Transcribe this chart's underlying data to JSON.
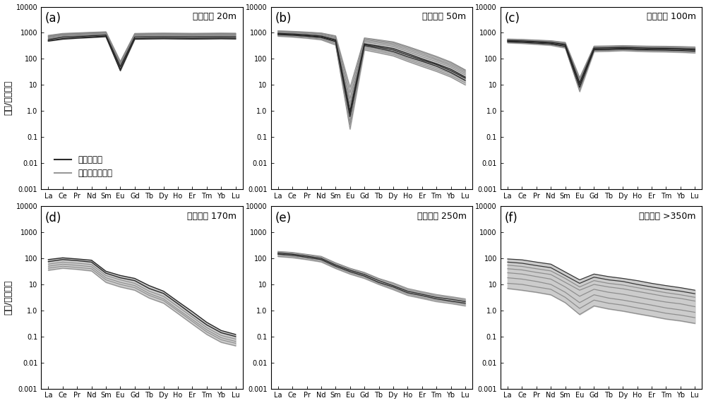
{
  "elements": [
    "La",
    "Ce",
    "Pr",
    "Nd",
    "Sm",
    "Eu",
    "Gd",
    "Tb",
    "Dy",
    "Ho",
    "Er",
    "Tm",
    "Yb",
    "Lu"
  ],
  "titles": [
    "距离岩体 20m",
    "距离岩体 50m",
    "距离岩体 100m",
    "距离岩体 170m",
    "距离岩体 250m",
    "距离岩体 >350m"
  ],
  "panel_labels": [
    "(a)",
    "(b)",
    "(c)",
    "(d)",
    "(e)",
    "(f)"
  ],
  "ylabel": "样品/球粒陨石",
  "ylim": [
    0.001,
    10000
  ],
  "yticks": [
    0.001,
    0.01,
    0.1,
    1.0,
    10,
    100,
    1000,
    10000
  ],
  "yticklabels": [
    "0.001",
    "0.01",
    "0.1",
    "1.0",
    "10",
    "100",
    "1000",
    "10000"
  ],
  "legend_entries": [
    "脉中白鹨矿",
    "接触带中白鹨矿"
  ],
  "legend_colors_dark": "#2a2a2a",
  "legend_colors_light": "#999999",
  "background_color": "#ffffff",
  "fill_color_dark": "#aaaaaa",
  "fill_color_light": "#cccccc",
  "panel_a": {
    "dark_lines": [
      [
        500,
        600,
        650,
        700,
        750,
        40,
        600,
        620,
        630,
        620,
        610,
        620,
        630,
        620
      ],
      [
        550,
        680,
        720,
        770,
        820,
        50,
        680,
        700,
        710,
        700,
        690,
        700,
        710,
        700
      ],
      [
        480,
        570,
        620,
        660,
        710,
        35,
        570,
        580,
        590,
        580,
        575,
        580,
        590,
        580
      ]
    ],
    "light_lines": [
      [
        700,
        850,
        900,
        950,
        1000,
        60,
        850,
        870,
        880,
        870,
        860,
        870,
        880,
        870
      ],
      [
        750,
        900,
        950,
        1000,
        1050,
        70,
        900,
        920,
        930,
        920,
        910,
        920,
        930,
        920
      ],
      [
        800,
        950,
        1000,
        1050,
        1100,
        80,
        950,
        970,
        980,
        970,
        960,
        970,
        980,
        970
      ],
      [
        680,
        820,
        870,
        920,
        970,
        55,
        820,
        840,
        850,
        840,
        830,
        840,
        850,
        840
      ],
      [
        720,
        870,
        920,
        970,
        1020,
        65,
        870,
        890,
        900,
        890,
        880,
        890,
        900,
        890
      ],
      [
        760,
        910,
        960,
        1010,
        1060,
        75,
        910,
        930,
        940,
        930,
        920,
        930,
        940,
        930
      ],
      [
        600,
        730,
        780,
        830,
        880,
        48,
        730,
        750,
        760,
        750,
        740,
        750,
        760,
        750
      ],
      [
        640,
        770,
        820,
        870,
        920,
        52,
        770,
        790,
        800,
        790,
        780,
        790,
        800,
        790
      ]
    ]
  },
  "panel_b": {
    "dark_lines": [
      [
        900,
        850,
        780,
        700,
        500,
        0.8,
        350,
        280,
        220,
        140,
        90,
        60,
        35,
        18
      ],
      [
        950,
        900,
        830,
        750,
        540,
        1.0,
        380,
        310,
        250,
        160,
        100,
        65,
        40,
        20
      ],
      [
        860,
        810,
        740,
        660,
        460,
        0.6,
        320,
        250,
        190,
        120,
        80,
        52,
        30,
        15
      ]
    ],
    "light_lines": [
      [
        1050,
        1000,
        930,
        850,
        630,
        2.0,
        500,
        420,
        340,
        220,
        140,
        90,
        55,
        28
      ],
      [
        1100,
        1050,
        980,
        900,
        680,
        3.0,
        550,
        460,
        380,
        250,
        160,
        100,
        62,
        32
      ],
      [
        1000,
        950,
        880,
        800,
        580,
        1.5,
        450,
        370,
        300,
        190,
        120,
        78,
        48,
        24
      ],
      [
        1150,
        1100,
        1030,
        950,
        730,
        5.0,
        600,
        500,
        420,
        280,
        180,
        115,
        70,
        36
      ],
      [
        820,
        770,
        700,
        620,
        420,
        0.4,
        280,
        220,
        170,
        105,
        68,
        44,
        27,
        14
      ],
      [
        780,
        730,
        660,
        580,
        380,
        0.3,
        250,
        195,
        150,
        92,
        59,
        38,
        23,
        12
      ],
      [
        1200,
        1140,
        1070,
        990,
        770,
        8.0,
        640,
        540,
        450,
        300,
        195,
        125,
        76,
        38
      ],
      [
        740,
        690,
        620,
        540,
        340,
        0.2,
        220,
        170,
        130,
        80,
        51,
        33,
        20,
        10
      ]
    ]
  },
  "panel_c": {
    "dark_lines": [
      [
        480,
        460,
        430,
        400,
        330,
        10,
        240,
        245,
        255,
        245,
        238,
        235,
        228,
        218
      ],
      [
        510,
        490,
        460,
        430,
        360,
        12,
        260,
        265,
        275,
        265,
        258,
        255,
        248,
        238
      ],
      [
        450,
        430,
        400,
        370,
        300,
        8,
        220,
        225,
        235,
        225,
        218,
        215,
        208,
        198
      ]
    ],
    "light_lines": [
      [
        540,
        520,
        490,
        460,
        390,
        15,
        280,
        285,
        295,
        285,
        278,
        275,
        268,
        258
      ],
      [
        560,
        540,
        510,
        480,
        410,
        17,
        295,
        300,
        310,
        300,
        293,
        290,
        283,
        273
      ],
      [
        520,
        500,
        470,
        440,
        370,
        13,
        265,
        270,
        280,
        270,
        263,
        260,
        253,
        243
      ],
      [
        580,
        560,
        530,
        500,
        430,
        19,
        310,
        315,
        325,
        315,
        308,
        305,
        298,
        288
      ],
      [
        430,
        410,
        380,
        350,
        280,
        6.5,
        205,
        210,
        220,
        210,
        203,
        200,
        193,
        183
      ],
      [
        410,
        390,
        360,
        330,
        260,
        5.5,
        190,
        195,
        205,
        195,
        188,
        185,
        178,
        168
      ]
    ]
  },
  "panel_d": {
    "dark_lines": [
      [
        90,
        105,
        95,
        85,
        32,
        22,
        17,
        9,
        5.5,
        2.2,
        0.9,
        0.35,
        0.17,
        0.12
      ],
      [
        75,
        90,
        82,
        72,
        27,
        18,
        14,
        7,
        4.5,
        1.8,
        0.7,
        0.28,
        0.14,
        0.1
      ]
    ],
    "light_lines": [
      [
        60,
        72,
        65,
        58,
        22,
        15,
        11,
        5.5,
        3.5,
        1.4,
        0.56,
        0.22,
        0.11,
        0.08
      ],
      [
        50,
        60,
        54,
        48,
        18,
        12,
        9,
        4.5,
        2.8,
        1.1,
        0.45,
        0.18,
        0.09,
        0.065
      ],
      [
        42,
        50,
        45,
        40,
        15,
        10,
        7.5,
        3.8,
        2.4,
        0.95,
        0.38,
        0.15,
        0.075,
        0.055
      ],
      [
        35,
        42,
        38,
        33,
        12,
        8,
        6,
        3.0,
        1.9,
        0.76,
        0.3,
        0.12,
        0.06,
        0.044
      ]
    ]
  },
  "panel_e": {
    "dark_lines": [
      [
        160,
        145,
        122,
        100,
        56,
        35,
        24,
        14,
        9,
        5.5,
        4.2,
        3.2,
        2.7,
        2.2
      ],
      [
        145,
        132,
        110,
        90,
        50,
        31,
        21,
        12,
        8,
        4.8,
        3.7,
        2.8,
        2.3,
        1.9
      ]
    ],
    "light_lines": [
      [
        175,
        160,
        135,
        112,
        63,
        39,
        27,
        16,
        10.5,
        6.3,
        4.8,
        3.7,
        3.1,
        2.5
      ],
      [
        185,
        170,
        143,
        120,
        68,
        42,
        29,
        17,
        11.5,
        7.0,
        5.3,
        4.1,
        3.4,
        2.8
      ],
      [
        130,
        118,
        99,
        81,
        45,
        28,
        19,
        11,
        7.0,
        4.3,
        3.2,
        2.5,
        2.1,
        1.7
      ],
      [
        118,
        107,
        90,
        73,
        41,
        25,
        17,
        10,
        6.3,
        3.8,
        2.9,
        2.2,
        1.85,
        1.5
      ]
    ]
  },
  "panel_f": {
    "lines": [
      [
        95,
        88,
        72,
        60,
        30,
        15,
        25,
        20,
        17,
        14,
        11,
        9,
        7.5,
        6.0
      ],
      [
        72,
        65,
        53,
        44,
        22,
        11,
        19,
        15,
        13,
        10,
        8,
        6.5,
        5.5,
        4.4
      ],
      [
        55,
        49,
        40,
        33,
        17,
        8,
        14,
        11,
        9.5,
        7.5,
        6,
        4.8,
        4.0,
        3.2
      ],
      [
        40,
        36,
        29,
        24,
        12,
        6,
        10,
        8,
        6.8,
        5.4,
        4.3,
        3.4,
        2.9,
        2.3
      ],
      [
        28,
        25,
        20,
        16,
        8,
        3.5,
        6.5,
        5,
        4.2,
        3.3,
        2.6,
        2.1,
        1.8,
        1.4
      ],
      [
        18,
        16,
        13,
        10,
        5,
        2.0,
        4.0,
        3.0,
        2.5,
        2.0,
        1.6,
        1.25,
        1.05,
        0.85
      ],
      [
        11,
        10,
        8,
        6.5,
        3.2,
        1.2,
        2.5,
        1.9,
        1.6,
        1.25,
        1.0,
        0.78,
        0.66,
        0.53
      ],
      [
        7,
        6,
        5,
        4,
        2.0,
        0.7,
        1.5,
        1.15,
        0.95,
        0.75,
        0.6,
        0.47,
        0.4,
        0.32
      ]
    ]
  }
}
